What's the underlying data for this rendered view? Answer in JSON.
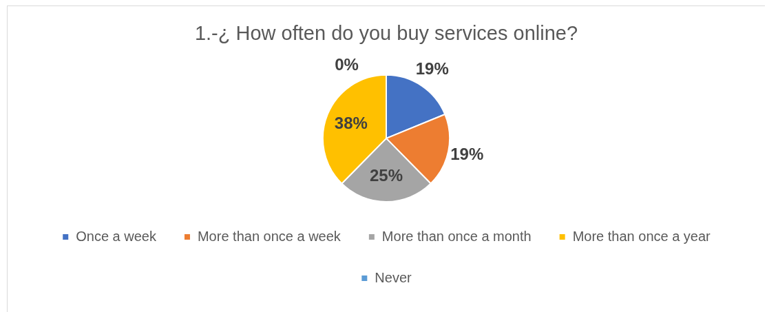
{
  "chart_data": {
    "type": "pie",
    "title": "1.-¿ How often do you buy services online?",
    "categories": [
      "Once a week",
      "More than once a week",
      "More than once a month",
      "More than once a year",
      "Never"
    ],
    "values": [
      19,
      19,
      25,
      38,
      0
    ],
    "colors": [
      "#4472c4",
      "#ed7d31",
      "#a5a5a5",
      "#ffc000",
      "#5b9bd5"
    ],
    "value_labels": [
      "19%",
      "19%",
      "25%",
      "38%",
      "0%"
    ],
    "legend": "bottom"
  }
}
